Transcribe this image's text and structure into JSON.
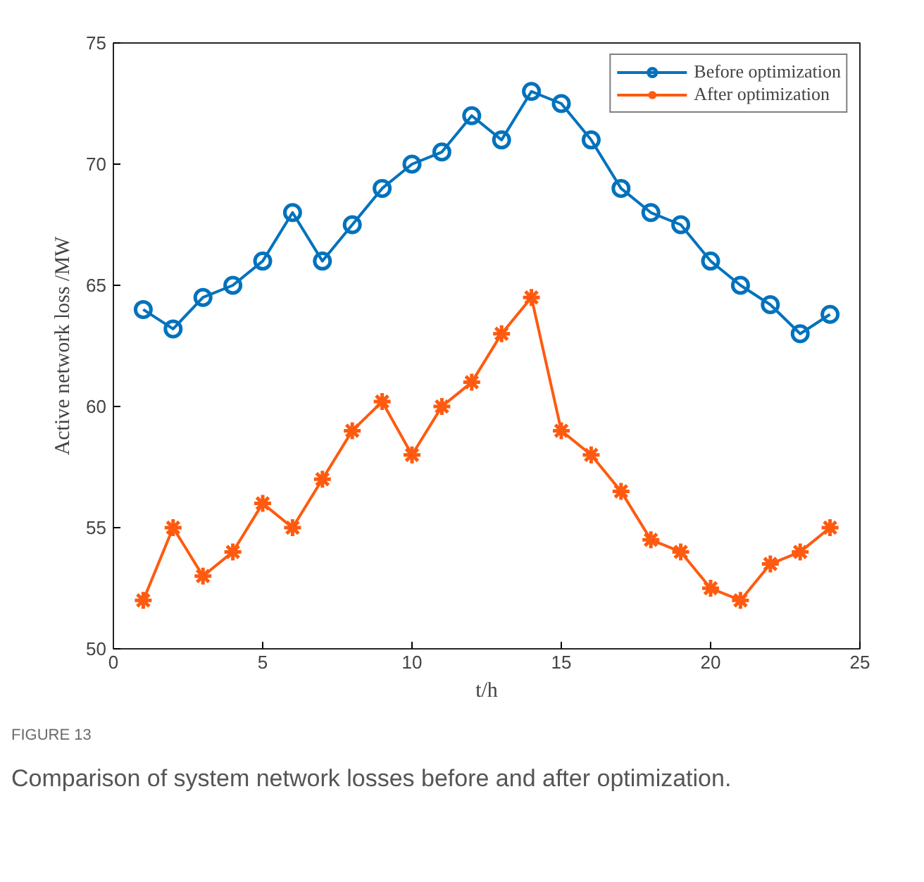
{
  "chart_data": {
    "type": "line",
    "xlabel": "t/h",
    "ylabel": "Active network loss /MW",
    "x": [
      1,
      2,
      3,
      4,
      5,
      6,
      7,
      8,
      9,
      10,
      11,
      12,
      13,
      14,
      15,
      16,
      17,
      18,
      19,
      20,
      21,
      22,
      23,
      24
    ],
    "series": [
      {
        "name": "Before optimization",
        "color": "#0072bd",
        "marker": "circle",
        "values": [
          64,
          63.2,
          64.5,
          65,
          66,
          68,
          66,
          67.5,
          69,
          70,
          70.5,
          72,
          71,
          73,
          72.5,
          71,
          69,
          68,
          67.5,
          66,
          65,
          64.2,
          63,
          63.8
        ]
      },
      {
        "name": "After optimization",
        "color": "#ff5a0f",
        "marker": "cross",
        "values": [
          52,
          55,
          53,
          54,
          56,
          55,
          57,
          59,
          60.2,
          58,
          60,
          61,
          63,
          64.5,
          59,
          58,
          56.5,
          54.5,
          54,
          52.5,
          52,
          53.5,
          54,
          55
        ]
      }
    ],
    "xlim": [
      0,
      25
    ],
    "ylim": [
      50,
      75
    ],
    "xticks": [
      0,
      5,
      10,
      15,
      20,
      25
    ],
    "yticks": [
      50,
      55,
      60,
      65,
      70,
      75
    ],
    "grid": false,
    "legend": "top right",
    "line_style": "solid",
    "annotations": [
      "FIGURE 13",
      "Comparison of system network losses before and after optimization."
    ]
  }
}
